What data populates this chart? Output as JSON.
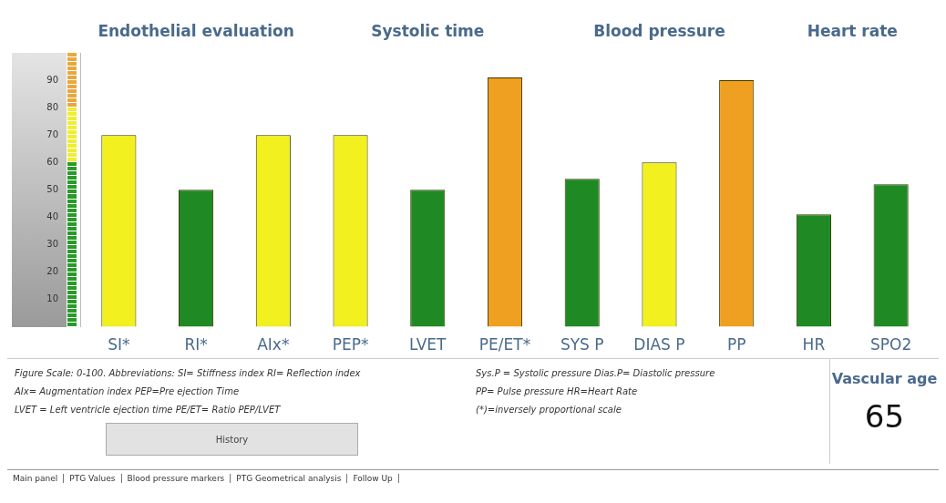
{
  "chart_data": {
    "type": "bar",
    "categories": [
      "SI*",
      "RI*",
      "AIx*",
      "PEP*",
      "LVET",
      "PE/ET*",
      "SYS P",
      "DIAS P",
      "PP",
      "HR",
      "SPO2"
    ],
    "values": [
      70,
      50,
      70,
      70,
      50,
      91,
      54,
      60,
      90,
      41,
      52
    ],
    "colors": [
      "#f2f01e",
      "#1f8a23",
      "#f2f01e",
      "#f2f01e",
      "#1f8a23",
      "#f0a020",
      "#1f8a23",
      "#f2f01e",
      "#f0a020",
      "#1f8a23",
      "#1f8a23"
    ],
    "ylim": [
      0,
      100
    ],
    "yticks": [
      10,
      20,
      30,
      40,
      50,
      60,
      70,
      80,
      90
    ],
    "grid": false,
    "legend": false,
    "annotations": [
      "Endothelial evaluation",
      "Systolic time",
      "Blood pressure",
      "Heart rate",
      "Figure Scale: 0-100. Abbreviations:  SI= Stiffness index  RI= Reflection index",
      "AIx= Augmentation index PEP=Pre ejection Time",
      "LVET = Left ventricle ejection time  PE/ET= Ratio PEP/LVET",
      "Sys.P = Systolic pressure Dias.P= Diastolic pressure",
      "PP= Pulse pressure       HR=Heart Rate",
      "(*)=inversely proportional scale",
      "History",
      "Vascular age",
      "65",
      "Main panel",
      "PTG Values",
      "Blood pressure markers",
      "PTG Geometrical analysis",
      "Follow Up"
    ]
  }
}
